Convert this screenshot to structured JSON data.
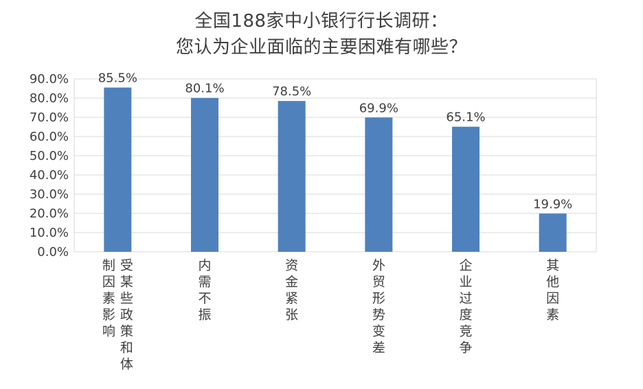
{
  "chart_data": {
    "type": "bar",
    "title_lines": [
      "全国188家中小银行行长调研：",
      "您认为企业面临的主要困难有哪些？"
    ],
    "categories": [
      "受某些政策和体制因素影响",
      "内需不振",
      "资金紧张",
      "外贸形势变差",
      "企业过度竞争",
      "其他因素"
    ],
    "category_label_columns": [
      [
        "受某些政策和体",
        "制因素影响"
      ],
      [
        "内需不振"
      ],
      [
        "资金紧张"
      ],
      [
        "外贸形势变差"
      ],
      [
        "企业过度竞争"
      ],
      [
        "其他因素"
      ]
    ],
    "values": [
      85.5,
      80.1,
      78.5,
      69.9,
      65.1,
      19.9
    ],
    "data_labels": [
      "85.5%",
      "80.1%",
      "78.5%",
      "69.9%",
      "65.1%",
      "19.9%"
    ],
    "ylim": [
      0,
      90
    ],
    "yticks": [
      0,
      10,
      20,
      30,
      40,
      50,
      60,
      70,
      80,
      90
    ],
    "ytick_labels": [
      "0.0%",
      "10.0%",
      "20.0%",
      "30.0%",
      "40.0%",
      "50.0%",
      "60.0%",
      "70.0%",
      "80.0%",
      "90.0%"
    ],
    "xlabel": "",
    "ylabel": "",
    "grid": true,
    "legend": "none",
    "bar_color": "#4F81BD",
    "grid_color": "#D9D9D9"
  }
}
